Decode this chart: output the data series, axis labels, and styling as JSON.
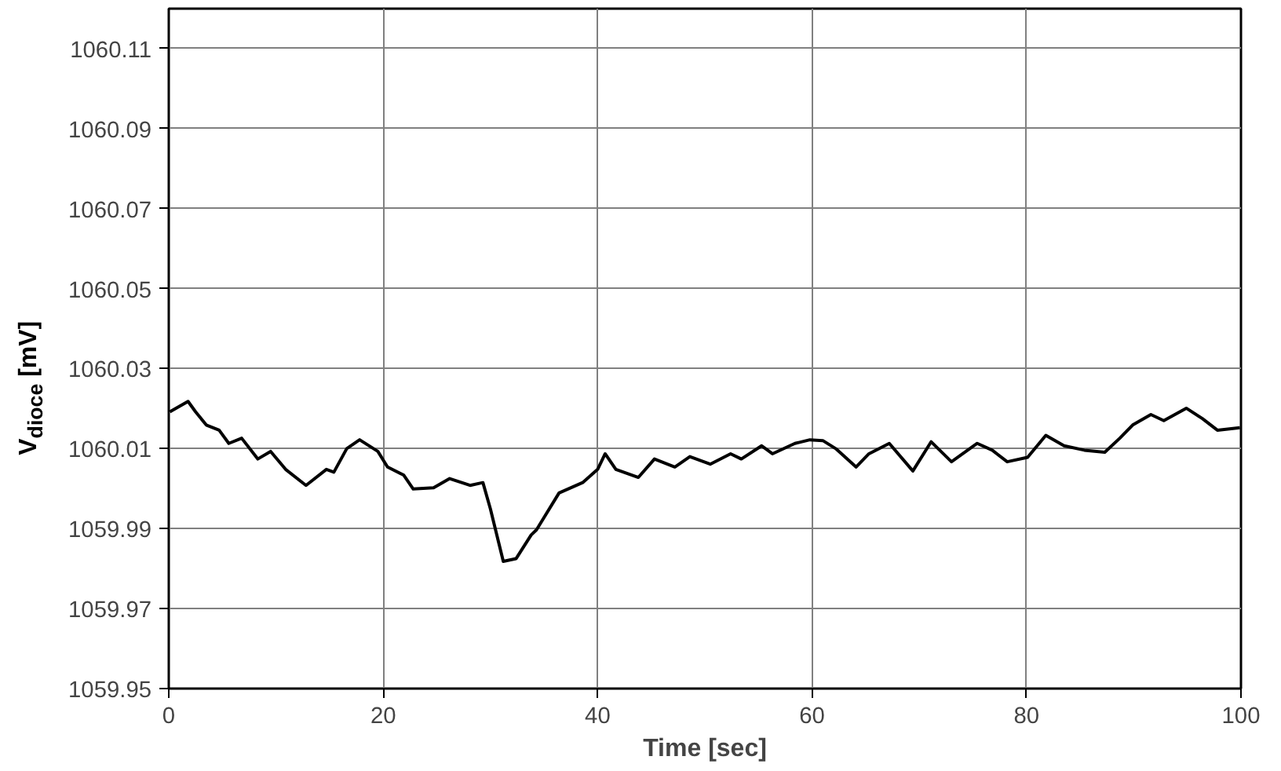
{
  "chart_data": {
    "type": "line",
    "xlabel": "Time [sec]",
    "ylabel": "V$_{dioce}$ [mV]",
    "xlim": [
      0,
      100
    ],
    "xticks": [
      0,
      20,
      40,
      60,
      80,
      100
    ],
    "ylim": [
      1059.95,
      1060.12
    ],
    "yticks": [
      {
        "value": 1059.95,
        "label": "1059.95"
      },
      {
        "value": 1059.97,
        "label": "1059.97"
      },
      {
        "value": 1059.99,
        "label": "1059.99"
      },
      {
        "value": 1060.01,
        "label": "1060.01"
      },
      {
        "value": 1060.03,
        "label": "1060.03"
      },
      {
        "value": 1060.05,
        "label": "1060.05"
      },
      {
        "value": 1060.07,
        "label": "1060.07"
      },
      {
        "value": 1060.09,
        "label": "1060.09"
      },
      {
        "value": 1060.11,
        "label": "1060.11"
      }
    ],
    "grid": true,
    "marker": "none",
    "line_style": "solid",
    "series": [
      {
        "color": "#000000",
        "x": [
          0.1,
          1.8,
          2.5,
          3.5,
          4.7,
          5.6,
          6.8,
          8.3,
          9.5,
          10.9,
          12.8,
          14.7,
          15.4,
          16.6,
          17.8,
          19.5,
          20.4,
          21.9,
          22.8,
          24.7,
          26.2,
          28.1,
          29.3,
          30.0,
          31.2,
          32.4,
          33.8,
          34.3,
          36.4,
          38.6,
          40.0,
          40.7,
          41.7,
          43.8,
          45.3,
          47.2,
          48.6,
          50.5,
          52.4,
          53.4,
          55.3,
          56.3,
          58.4,
          59.8,
          61.0,
          62.2,
          64.1,
          65.3,
          67.2,
          69.4,
          71.1,
          73.0,
          75.4,
          76.8,
          78.2,
          80.1,
          81.8,
          83.5,
          85.4,
          87.3,
          88.7,
          89.9,
          91.6,
          92.8,
          94.9,
          96.4,
          97.8,
          99.9
        ],
        "values": [
          1060.0192,
          1060.0218,
          1060.0192,
          1060.0159,
          1060.0146,
          1060.0113,
          1060.0126,
          1060.0074,
          1060.0093,
          1060.0048,
          1060.0008,
          1060.0048,
          1060.0041,
          1060.01,
          1060.0122,
          1060.0093,
          1060.0054,
          1060.0034,
          1059.9999,
          1060.0002,
          1060.0025,
          1060.0008,
          1060.0015,
          1059.9949,
          1059.9818,
          1059.9825,
          1059.9884,
          1059.9897,
          1059.9989,
          1060.0015,
          1060.0048,
          1060.0087,
          1060.0048,
          1060.0028,
          1060.0074,
          1060.0054,
          1060.008,
          1060.0061,
          1060.0087,
          1060.0074,
          1060.0107,
          1060.0087,
          1060.0113,
          1060.0122,
          1060.012,
          1060.01,
          1060.0054,
          1060.0087,
          1060.0113,
          1060.0044,
          1060.0117,
          1060.0067,
          1060.0113,
          1060.0096,
          1060.0067,
          1060.0078,
          1060.0133,
          1060.0107,
          1060.0096,
          1060.0091,
          1060.0126,
          1060.0159,
          1060.0185,
          1060.017,
          1060.0201,
          1060.0175,
          1060.0146,
          1060.0152
        ]
      }
    ]
  }
}
